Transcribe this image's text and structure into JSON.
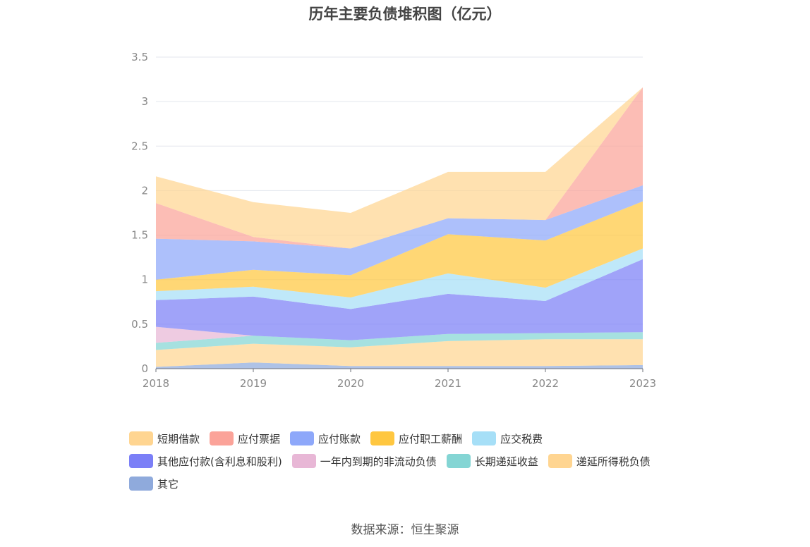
{
  "source_text": "数据来源：恒生聚源",
  "chart_data": {
    "type": "area",
    "stacked": true,
    "title": "历年主要负债堆积图（亿元）",
    "xlabel": "",
    "ylabel": "",
    "x": [
      "2018",
      "2019",
      "2020",
      "2021",
      "2022",
      "2023"
    ],
    "ylim": [
      0,
      3.5
    ],
    "yticks": [
      "0",
      "0.5",
      "1",
      "1.5",
      "2",
      "2.5",
      "3",
      "3.5"
    ],
    "grid": true,
    "legend_position": "bottom",
    "series": [
      {
        "name": "其它",
        "color": "#8faadc",
        "values": [
          0.02,
          0.07,
          0.03,
          0.03,
          0.03,
          0.04
        ]
      },
      {
        "name": "递延所得税负债",
        "color": "#ffd591",
        "values": [
          0.19,
          0.21,
          0.21,
          0.28,
          0.3,
          0.29
        ]
      },
      {
        "name": "长期递延收益",
        "color": "#84d5d4",
        "values": [
          0.08,
          0.09,
          0.08,
          0.08,
          0.07,
          0.08
        ]
      },
      {
        "name": "一年内到期的非流动负债",
        "color": "#e8b7d6",
        "values": [
          0.18,
          0.0,
          0.0,
          0.0,
          0.0,
          0.0
        ]
      },
      {
        "name": "其他应付款(含利息和股利)",
        "color": "#7b7ff7",
        "values": [
          0.3,
          0.44,
          0.35,
          0.45,
          0.36,
          0.82
        ]
      },
      {
        "name": "应交税费",
        "color": "#a6dff7",
        "values": [
          0.1,
          0.11,
          0.13,
          0.23,
          0.15,
          0.12
        ]
      },
      {
        "name": "应付职工薪酬",
        "color": "#ffc740",
        "values": [
          0.13,
          0.19,
          0.25,
          0.44,
          0.53,
          0.53
        ]
      },
      {
        "name": "应付账款",
        "color": "#8ea8fa",
        "values": [
          0.46,
          0.32,
          0.3,
          0.18,
          0.23,
          0.18
        ]
      },
      {
        "name": "应付票据",
        "color": "#fba399",
        "values": [
          0.4,
          0.05,
          0.0,
          0.0,
          0.0,
          1.1
        ]
      },
      {
        "name": "短期借款",
        "color": "#ffd591",
        "values": [
          0.3,
          0.39,
          0.4,
          0.52,
          0.54,
          0.0
        ]
      }
    ],
    "legend_order": [
      "短期借款",
      "应付票据",
      "应付账款",
      "应付职工薪酬",
      "应交税费",
      "其他应付款(含利息和股利)",
      "一年内到期的非流动负债",
      "长期递延收益",
      "递延所得税负债",
      "其它"
    ]
  }
}
